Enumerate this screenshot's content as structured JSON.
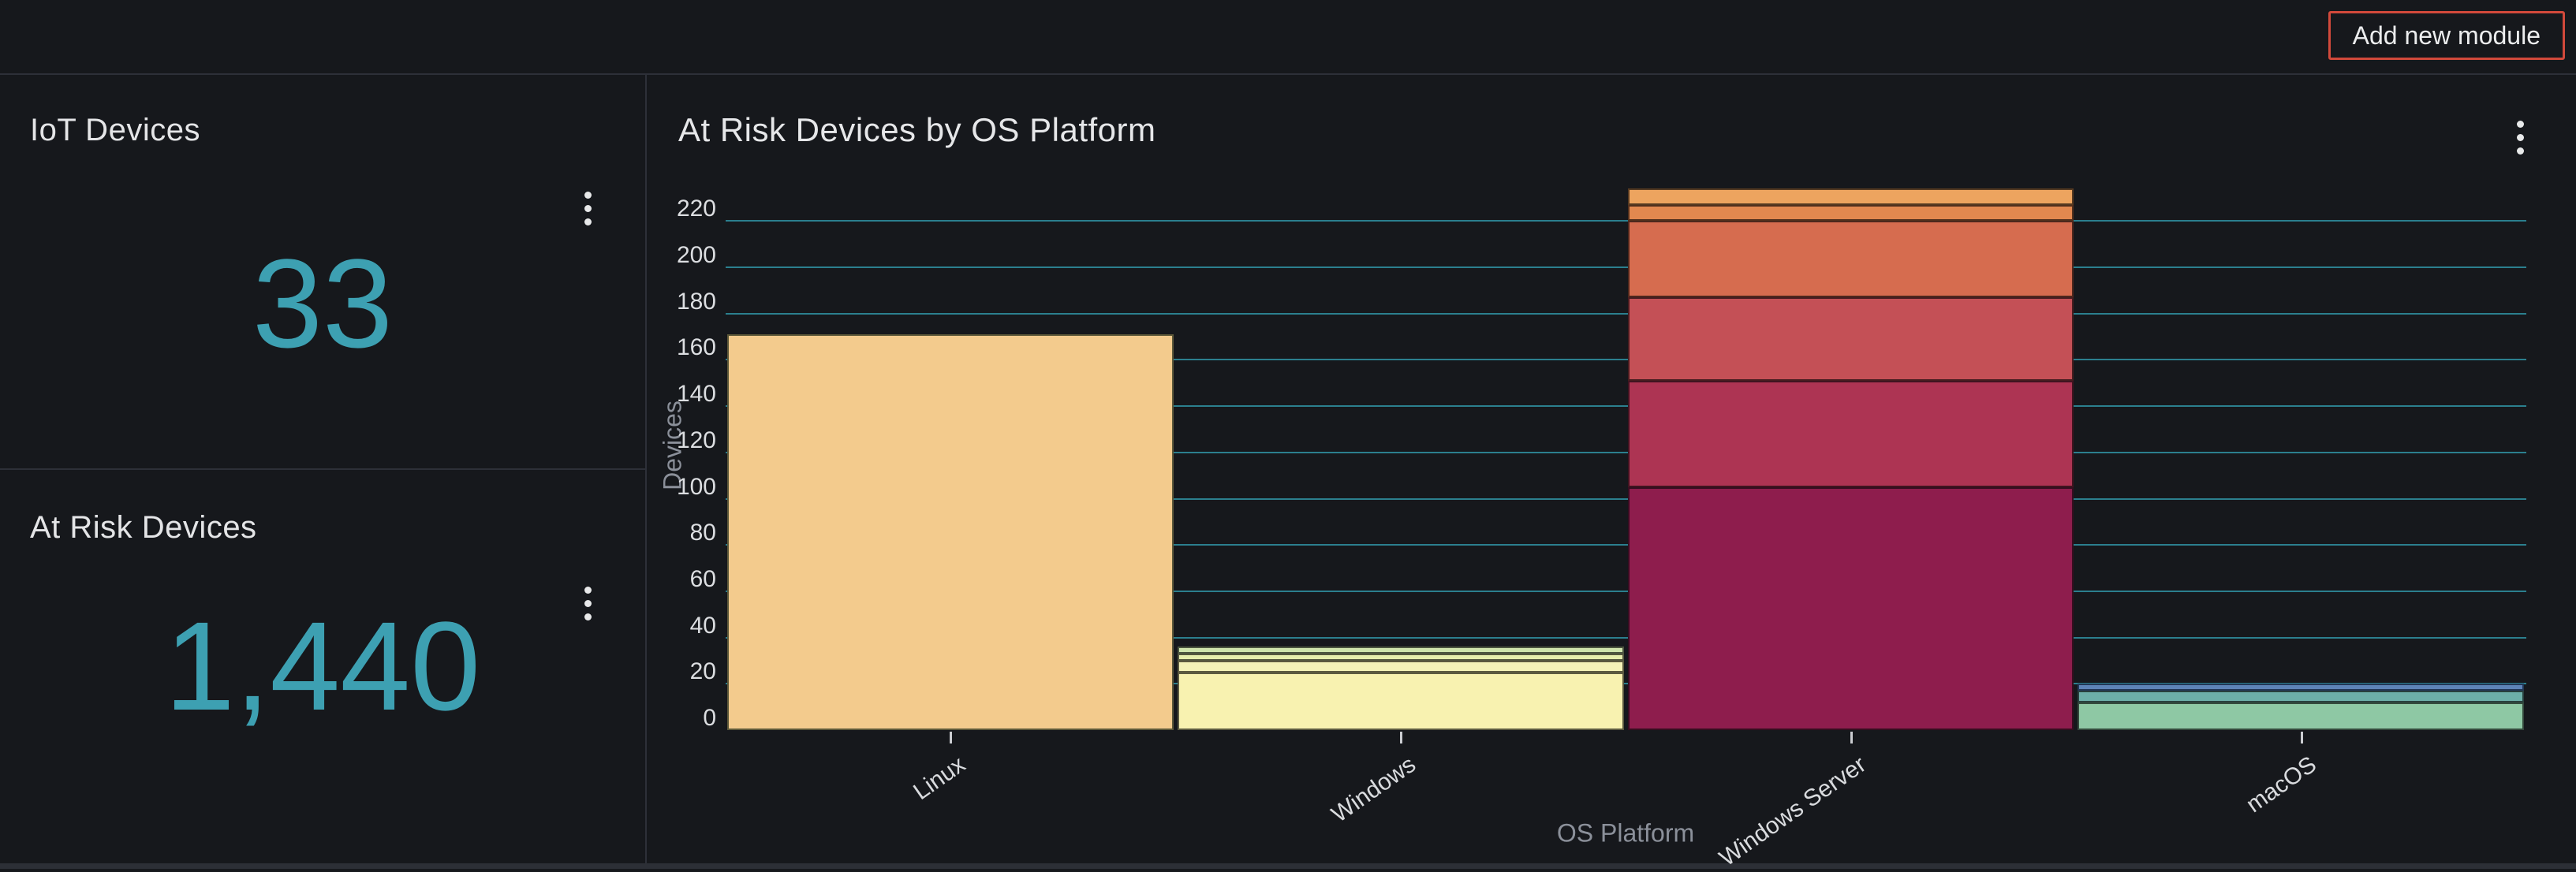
{
  "topbar": {
    "add_module_label": "Add new module"
  },
  "cards": [
    {
      "title": "IoT Devices",
      "value": "33"
    },
    {
      "title": "At Risk Devices",
      "value": "1,440"
    }
  ],
  "colors": {
    "accent_red": "#d2493b",
    "stat_value_teal": "#3da0b2",
    "gridline_teal": "#2b7f8e",
    "axis_tick_label": "#dcdee1",
    "axis_title_gray": "#8b909a"
  },
  "chart": {
    "title": "At Risk Devices by OS Platform"
  },
  "chart_data": {
    "type": "bar",
    "stacked": true,
    "title": "At Risk Devices by OS Platform",
    "xlabel": "OS Platform",
    "ylabel": "Devices",
    "ylim": [
      0,
      220
    ],
    "yticks": [
      0,
      20,
      40,
      60,
      80,
      100,
      120,
      140,
      160,
      180,
      200,
      220
    ],
    "grid": true,
    "legend": false,
    "categories": [
      "Linux",
      "Windows",
      "Windows Server",
      "macOS"
    ],
    "totals": [
      171,
      36,
      234,
      20
    ],
    "segment_order": "bottom-to-top",
    "bars": [
      {
        "category": "Linux",
        "segments": [
          {
            "value": 171,
            "color": "#f3cb8d",
            "stroke": "#5c5839"
          }
        ]
      },
      {
        "category": "Windows",
        "segments": [
          {
            "value": 25,
            "color": "#f8f2b0",
            "stroke": "#5c5a40"
          },
          {
            "value": 5,
            "color": "#f5f3b8",
            "stroke": "#5c5a40"
          },
          {
            "value": 3,
            "color": "#e7efae",
            "stroke": "#555840"
          },
          {
            "value": 3,
            "color": "#cfe5ad",
            "stroke": "#4b553f"
          }
        ]
      },
      {
        "category": "Windows Server",
        "segments": [
          {
            "value": 105,
            "color": "#8e1d4d",
            "stroke": "#360e20"
          },
          {
            "value": 46,
            "color": "#ad3453",
            "stroke": "#3f1420"
          },
          {
            "value": 36,
            "color": "#c45056",
            "stroke": "#471d20"
          },
          {
            "value": 33,
            "color": "#d66c4f",
            "stroke": "#4d271d"
          },
          {
            "value": 7,
            "color": "#e2884f",
            "stroke": "#52301d"
          },
          {
            "value": 7,
            "color": "#eda45f",
            "stroke": "#563a21"
          }
        ]
      },
      {
        "category": "macOS",
        "segments": [
          {
            "value": 12,
            "color": "#8ec8a4",
            "stroke": "#34493c"
          },
          {
            "value": 5,
            "color": "#6dafa9",
            "stroke": "#28403d"
          },
          {
            "value": 3,
            "color": "#5d83b7",
            "stroke": "#223756"
          }
        ]
      }
    ]
  }
}
